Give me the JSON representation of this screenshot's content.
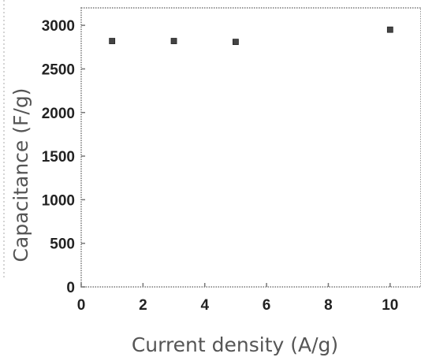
{
  "chart_data": {
    "type": "scatter",
    "xlabel": "Current density (A/g)",
    "ylabel": "Capacitance (F/g)",
    "xlim": [
      0,
      11
    ],
    "ylim": [
      0,
      3200
    ],
    "xticks": [
      0,
      2,
      4,
      6,
      8,
      10
    ],
    "yticks": [
      0,
      500,
      1000,
      1500,
      2000,
      2500,
      3000
    ],
    "xtick_labels": [
      "0",
      "2",
      "4",
      "6",
      "8",
      "10"
    ],
    "ytick_labels": [
      "0",
      "500",
      "1000",
      "1500",
      "2000",
      "2500",
      "3000"
    ],
    "series": [
      {
        "x": [
          1,
          3,
          5,
          10
        ],
        "y": [
          2820,
          2820,
          2810,
          2950
        ]
      }
    ],
    "marker_color": "#444444",
    "frame_color": "#777777"
  }
}
